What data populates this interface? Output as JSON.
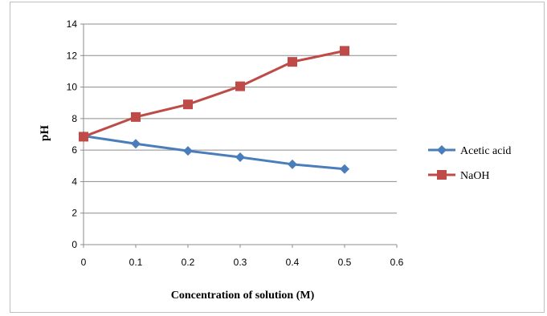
{
  "chart_data": {
    "type": "line",
    "title": "",
    "xlabel": "Concentration of solution (M)",
    "ylabel": "pH",
    "x": [
      0,
      0.1,
      0.2,
      0.3,
      0.4,
      0.5
    ],
    "xlim": [
      0,
      0.6
    ],
    "ylim": [
      0,
      14
    ],
    "xticks": [
      "0",
      "0.1",
      "0.2",
      "0.3",
      "0.4",
      "0.5",
      "0.6"
    ],
    "yticks": [
      "0",
      "2",
      "4",
      "6",
      "8",
      "10",
      "12",
      "14"
    ],
    "grid": "horizontal",
    "legend_position": "right",
    "series": [
      {
        "name": "Acetic acid",
        "color": "#4a7ebb",
        "marker": "diamond",
        "values": [
          6.9,
          6.4,
          5.95,
          5.55,
          5.1,
          4.8
        ]
      },
      {
        "name": "NaOH",
        "color": "#be4b48",
        "marker": "square",
        "values": [
          6.85,
          8.1,
          8.9,
          10.05,
          11.6,
          12.3
        ]
      }
    ]
  }
}
